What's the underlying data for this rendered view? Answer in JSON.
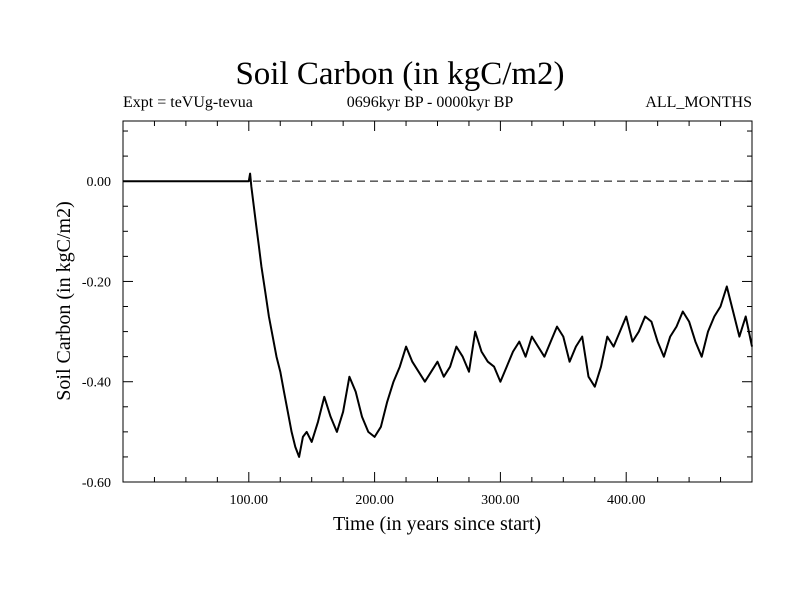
{
  "chart_data": {
    "type": "line",
    "title": "Soil Carbon (in kgC/m2)",
    "subtitle_left": "Expt = teVUg-tevua",
    "subtitle_center": "0696kyr BP - 0000kyr BP",
    "subtitle_right": "ALL_MONTHS",
    "xlabel": "Time (in years since start)",
    "ylabel": "Soil Carbon (in kgC/m2)",
    "xlim": [
      0,
      500
    ],
    "ylim": [
      -0.6,
      0.12
    ],
    "x_ticks": [
      100,
      200,
      300,
      400
    ],
    "x_tick_labels": [
      "100.00",
      "200.00",
      "300.00",
      "400.00"
    ],
    "y_ticks": [
      0,
      -0.2,
      -0.4,
      -0.6
    ],
    "y_tick_labels": [
      "0.00",
      "-0.20",
      "-0.40",
      "-0.60"
    ],
    "reference_line": {
      "y": 0,
      "style": "dashed"
    },
    "series": [
      {
        "name": "Soil Carbon",
        "x": [
          0,
          100,
          101,
          102,
          104,
          106,
          108,
          110,
          113,
          116,
          119,
          122,
          125,
          128,
          131,
          134,
          137,
          140,
          143,
          146,
          150,
          155,
          160,
          165,
          170,
          175,
          180,
          185,
          190,
          195,
          200,
          205,
          210,
          215,
          220,
          225,
          230,
          235,
          240,
          245,
          250,
          255,
          260,
          265,
          270,
          275,
          280,
          285,
          290,
          295,
          300,
          305,
          310,
          315,
          320,
          325,
          330,
          335,
          340,
          345,
          350,
          355,
          360,
          365,
          370,
          375,
          380,
          385,
          390,
          395,
          400,
          405,
          410,
          415,
          420,
          425,
          430,
          435,
          440,
          445,
          450,
          455,
          460,
          465,
          470,
          475,
          480,
          485,
          490,
          495,
          500
        ],
        "y": [
          0.0,
          0.0,
          0.015,
          -0.01,
          -0.05,
          -0.09,
          -0.13,
          -0.17,
          -0.22,
          -0.27,
          -0.31,
          -0.35,
          -0.38,
          -0.42,
          -0.46,
          -0.5,
          -0.53,
          -0.55,
          -0.51,
          -0.5,
          -0.52,
          -0.48,
          -0.43,
          -0.47,
          -0.5,
          -0.46,
          -0.39,
          -0.42,
          -0.47,
          -0.5,
          -0.51,
          -0.49,
          -0.44,
          -0.4,
          -0.37,
          -0.33,
          -0.36,
          -0.38,
          -0.4,
          -0.38,
          -0.36,
          -0.39,
          -0.37,
          -0.33,
          -0.35,
          -0.38,
          -0.3,
          -0.34,
          -0.36,
          -0.37,
          -0.4,
          -0.37,
          -0.34,
          -0.32,
          -0.35,
          -0.31,
          -0.33,
          -0.35,
          -0.32,
          -0.29,
          -0.31,
          -0.36,
          -0.33,
          -0.31,
          -0.39,
          -0.41,
          -0.37,
          -0.31,
          -0.33,
          -0.3,
          -0.27,
          -0.32,
          -0.3,
          -0.27,
          -0.28,
          -0.32,
          -0.35,
          -0.31,
          -0.29,
          -0.26,
          -0.28,
          -0.32,
          -0.35,
          -0.3,
          -0.27,
          -0.25,
          -0.21,
          -0.26,
          -0.31,
          -0.27,
          -0.33
        ]
      }
    ]
  }
}
